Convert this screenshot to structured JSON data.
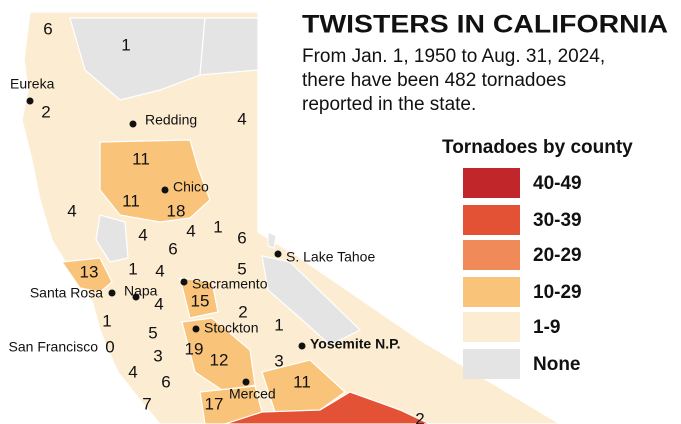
{
  "header": {
    "title": "TWISTERS IN CALIFORNIA",
    "subtitle_lines": [
      "From Jan. 1, 1950 to Aug. 31, 2024,",
      "there have been 482 tornadoes",
      "reported in the state."
    ]
  },
  "legend": {
    "title": "Tornadoes by county",
    "items": [
      {
        "label": "40-49",
        "color": "#c0262a"
      },
      {
        "label": "30-39",
        "color": "#e35234"
      },
      {
        "label": "20-29",
        "color": "#f08a58"
      },
      {
        "label": "10-29",
        "color": "#f9c47a"
      },
      {
        "label": "1-9",
        "color": "#fcedd2"
      },
      {
        "label": "None",
        "color": "#e4e4e4"
      }
    ]
  },
  "cities": [
    {
      "label": "Eureka"
    },
    {
      "label": "Redding"
    },
    {
      "label": "Chico"
    },
    {
      "label": "S. Lake Tahoe"
    },
    {
      "label": "Sacramento"
    },
    {
      "label": "Santa Rosa"
    },
    {
      "label": "Napa"
    },
    {
      "label": "Stockton"
    },
    {
      "label": "San Francisco"
    },
    {
      "label": "Yosemite N.P."
    },
    {
      "label": "Merced"
    }
  ],
  "county_counts": [
    6,
    1,
    2,
    4,
    11,
    11,
    18,
    4,
    4,
    6,
    4,
    1,
    6,
    5,
    13,
    1,
    4,
    4,
    15,
    2,
    1,
    5,
    1,
    19,
    3,
    12,
    3,
    0,
    4,
    6,
    11,
    17,
    7,
    2
  ]
}
